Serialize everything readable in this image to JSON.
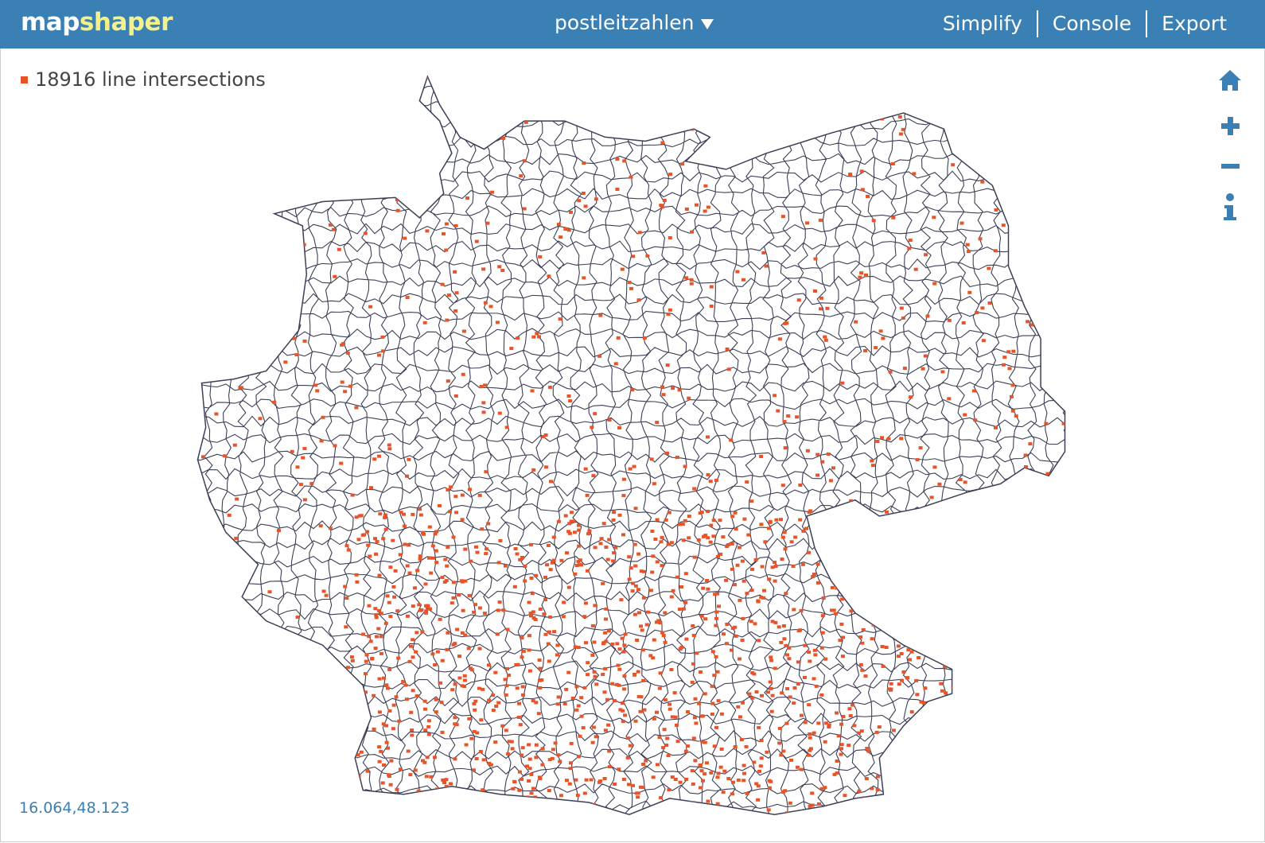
{
  "header": {
    "logo_map": "map",
    "logo_shaper": "shaper",
    "layer_name": "postleitzahlen",
    "menu": [
      "Simplify",
      "Console",
      "Export"
    ]
  },
  "map": {
    "intersections_label": "18916 line intersections",
    "coordinates": "16.064,48.123"
  }
}
